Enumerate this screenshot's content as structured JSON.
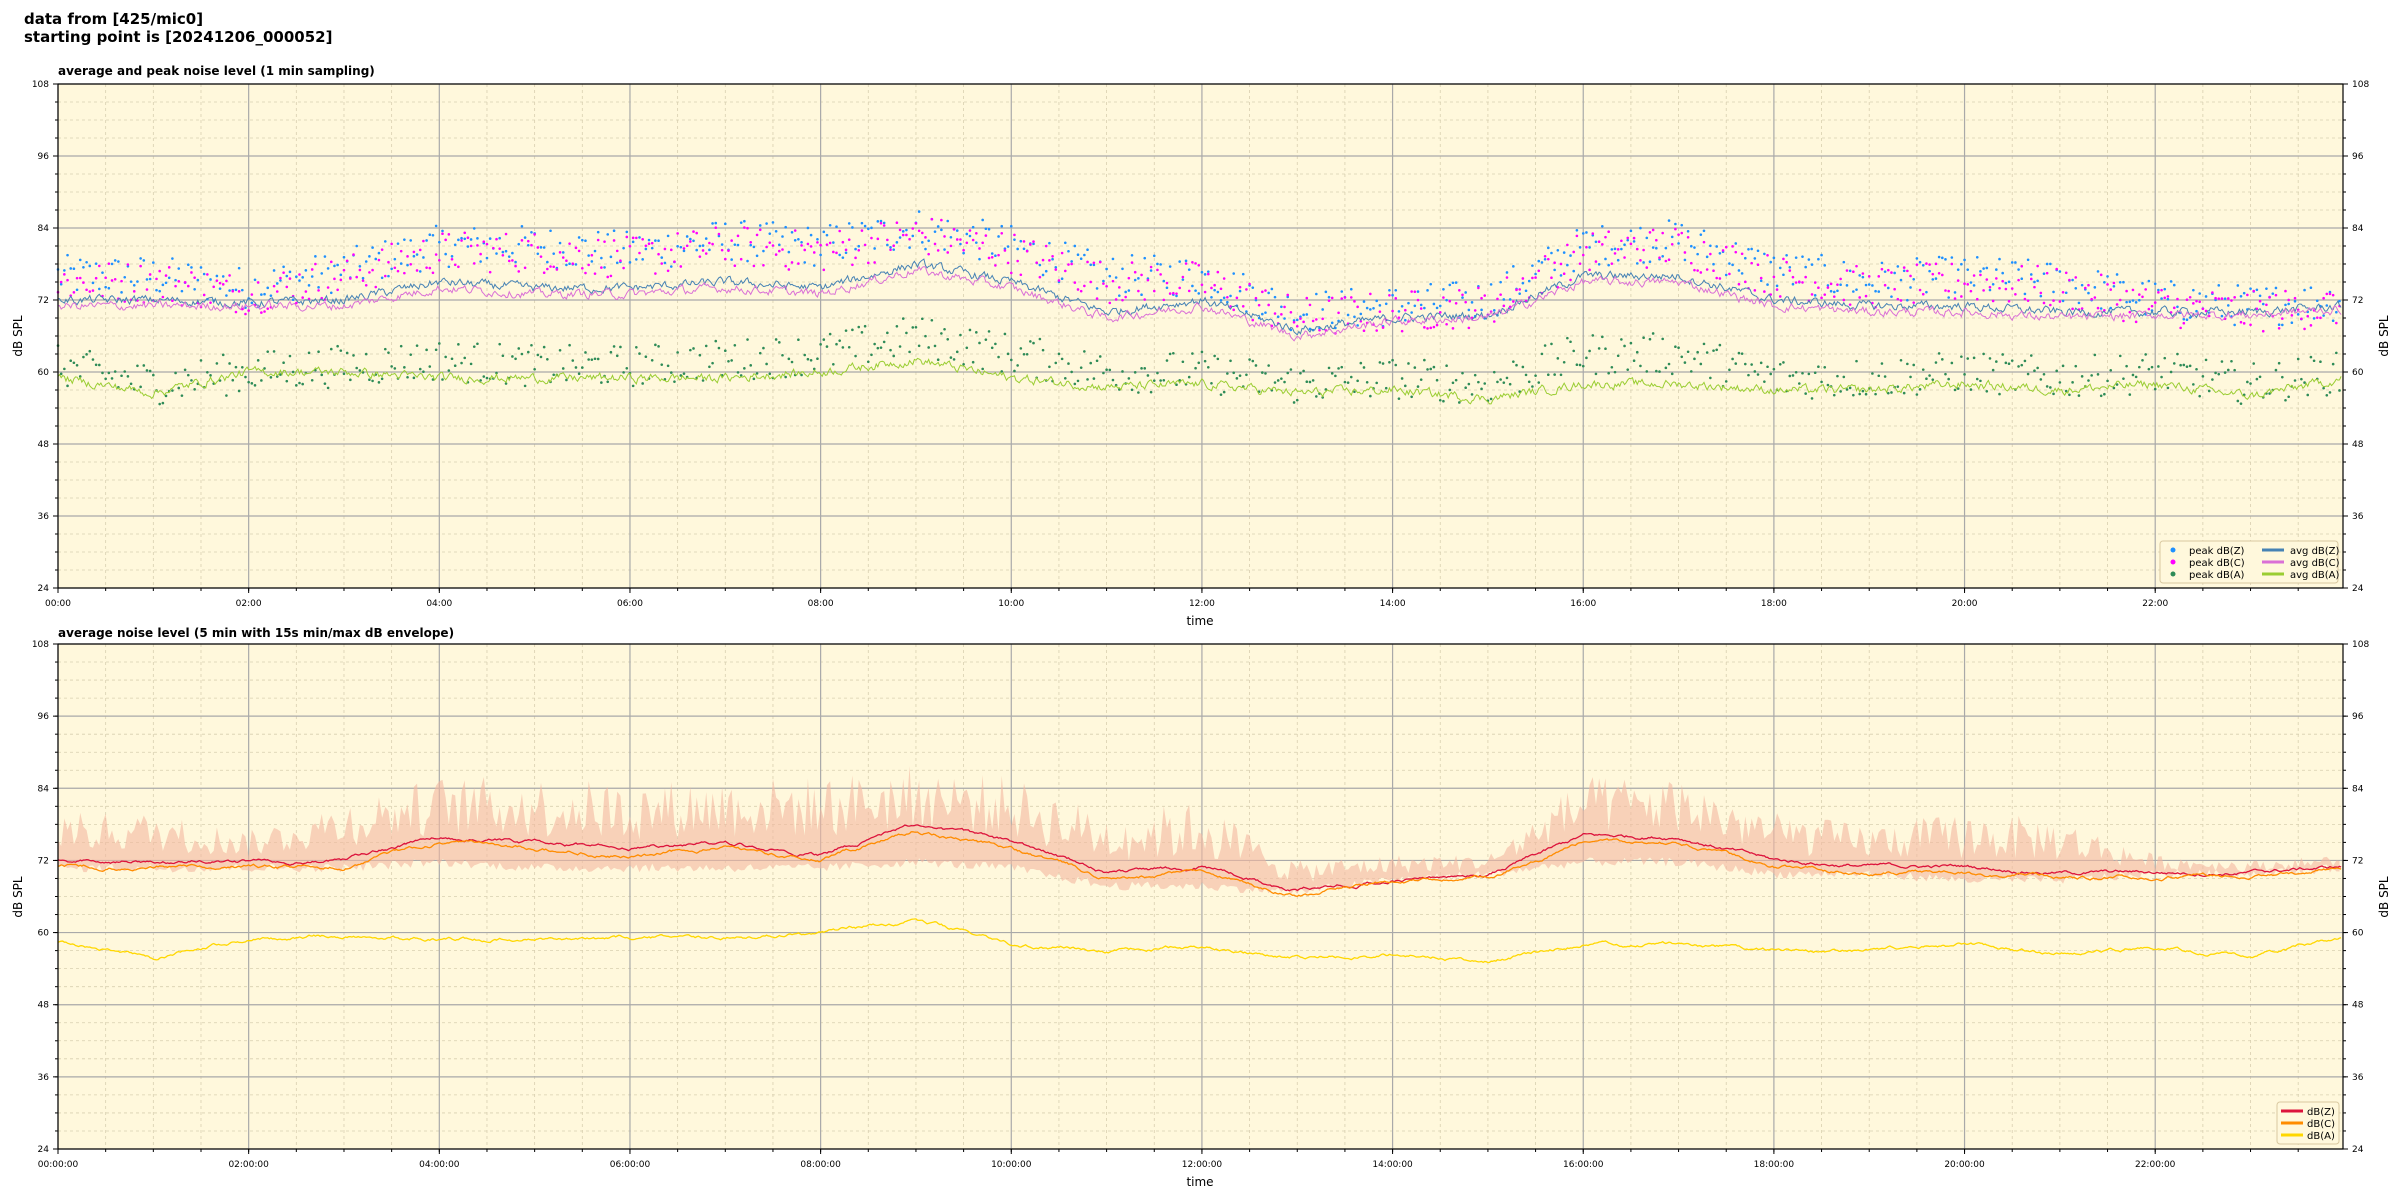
{
  "header": {
    "line1": "data from [425/mic0]",
    "line2": "starting point is [20241206_000052]"
  },
  "chart_data": [
    {
      "type": "line",
      "title": "average and peak noise level (1 min sampling)",
      "xlabel": "time",
      "ylabel": "dB SPL",
      "ylim": [
        24,
        108
      ],
      "xlim_hours": [
        0,
        24
      ],
      "yticks": [
        "24",
        "36",
        "48",
        "60",
        "72",
        "84",
        "96",
        "108"
      ],
      "xticks": [
        "00:00",
        "02:00",
        "04:00",
        "06:00",
        "08:00",
        "10:00",
        "12:00",
        "14:00",
        "16:00",
        "18:00",
        "20:00",
        "22:00"
      ],
      "grid": true,
      "background": "#fff8dc",
      "legend": "bottom-right",
      "hours": [
        0,
        1,
        2,
        3,
        4,
        5,
        6,
        7,
        8,
        9,
        10,
        11,
        12,
        13,
        14,
        15,
        16,
        17,
        18,
        19,
        20,
        21,
        22,
        23,
        24
      ],
      "series": [
        {
          "name": "peak dB(Z)",
          "kind": "scatter",
          "color": "#1e90ff",
          "values": [
            76,
            76,
            74,
            77,
            81,
            81,
            80,
            82,
            81,
            84,
            81,
            76,
            76,
            70,
            71,
            72,
            81,
            82,
            77,
            75,
            76,
            75,
            72,
            71,
            72
          ]
        },
        {
          "name": "peak dB(C)",
          "kind": "scatter",
          "color": "#ff00ff",
          "values": [
            75,
            75,
            73,
            76,
            80,
            80,
            79,
            81,
            80,
            83,
            80,
            75,
            75,
            69,
            70,
            71,
            80,
            81,
            76,
            74,
            75,
            74,
            71,
            70,
            71
          ]
        },
        {
          "name": "peak dB(A)",
          "kind": "scatter",
          "color": "#2e8b57",
          "values": [
            61,
            58,
            60,
            61,
            62,
            61,
            61,
            62,
            63,
            66,
            63,
            60,
            60,
            58,
            59,
            58,
            63,
            63,
            59,
            59,
            60,
            59,
            60,
            58,
            60
          ]
        },
        {
          "name": "avg dB(Z)",
          "kind": "line",
          "color": "#4682b4",
          "values": [
            72,
            72,
            71.5,
            72,
            75,
            74,
            74,
            75,
            74,
            78,
            75,
            70,
            72,
            67,
            69,
            69.5,
            76,
            76,
            72,
            71,
            71,
            70,
            70,
            70,
            71
          ]
        },
        {
          "name": "avg dB(C)",
          "kind": "line",
          "color": "#da70d6",
          "values": [
            71,
            71,
            71,
            71,
            74,
            73,
            73,
            74,
            73,
            77,
            74,
            69,
            71,
            66,
            68.5,
            69,
            75,
            75,
            71,
            70,
            70,
            69,
            69.5,
            69.5,
            70.5
          ]
        },
        {
          "name": "avg dB(A)",
          "kind": "line",
          "color": "#9acd32",
          "values": [
            59,
            56.5,
            60,
            60,
            59,
            59,
            59,
            59,
            60,
            62,
            59,
            57.5,
            58,
            56.5,
            57,
            55.5,
            58,
            58,
            57,
            57,
            58,
            57,
            58,
            56,
            59
          ]
        }
      ]
    },
    {
      "type": "line",
      "title": "average noise level (5 min with 15s min/max dB envelope)",
      "xlabel": "time",
      "ylabel": "dB SPL",
      "ylim": [
        24,
        108
      ],
      "xlim_hours": [
        0,
        24
      ],
      "yticks": [
        "24",
        "36",
        "48",
        "60",
        "72",
        "84",
        "96",
        "108"
      ],
      "xticks": [
        "00:00:00",
        "02:00:00",
        "04:00:00",
        "06:00:00",
        "08:00:00",
        "10:00:00",
        "12:00:00",
        "14:00:00",
        "16:00:00",
        "18:00:00",
        "20:00:00",
        "22:00:00"
      ],
      "grid": true,
      "background": "#fff8dc",
      "legend": "bottom-right",
      "envelope_color": "#f4b8a0",
      "hours": [
        0,
        1,
        2,
        3,
        4,
        5,
        6,
        7,
        8,
        9,
        10,
        11,
        12,
        13,
        14,
        15,
        16,
        17,
        18,
        19,
        20,
        21,
        22,
        23,
        24
      ],
      "envelope_max": [
        80,
        80,
        77,
        82,
        86,
        86,
        85,
        86,
        86,
        88,
        86,
        80,
        82,
        72,
        73,
        73,
        86,
        86,
        80,
        78,
        80,
        79,
        73,
        72,
        73
      ],
      "envelope_min": [
        70,
        70,
        70,
        70,
        71,
        70,
        70,
        70,
        70,
        71,
        70,
        67,
        67,
        66,
        68,
        69,
        71,
        71,
        69,
        69,
        68,
        68,
        69,
        69,
        70
      ],
      "series": [
        {
          "name": "dB(Z)",
          "color": "#dc143c",
          "values": [
            72,
            72,
            72,
            72,
            76,
            75,
            74,
            75,
            73,
            78,
            75,
            70,
            71,
            67,
            69,
            69.5,
            76,
            76,
            72,
            71,
            71,
            70,
            70,
            70,
            71
          ]
        },
        {
          "name": "dB(C)",
          "color": "#ff8c00",
          "values": [
            71,
            71,
            71,
            71,
            75,
            74,
            73,
            74,
            72,
            77,
            74,
            69,
            70,
            66,
            68.5,
            69,
            75,
            75,
            71,
            70,
            70,
            69,
            69.5,
            69.5,
            70.5
          ]
        },
        {
          "name": "dB(A)",
          "color": "#ffd700",
          "values": [
            58.5,
            55.5,
            59,
            59.5,
            59,
            59,
            59,
            59,
            60,
            62,
            58,
            57,
            57.5,
            56,
            56.5,
            55.5,
            58,
            58,
            57,
            57,
            58,
            56.5,
            57.5,
            56,
            59
          ]
        }
      ]
    }
  ]
}
